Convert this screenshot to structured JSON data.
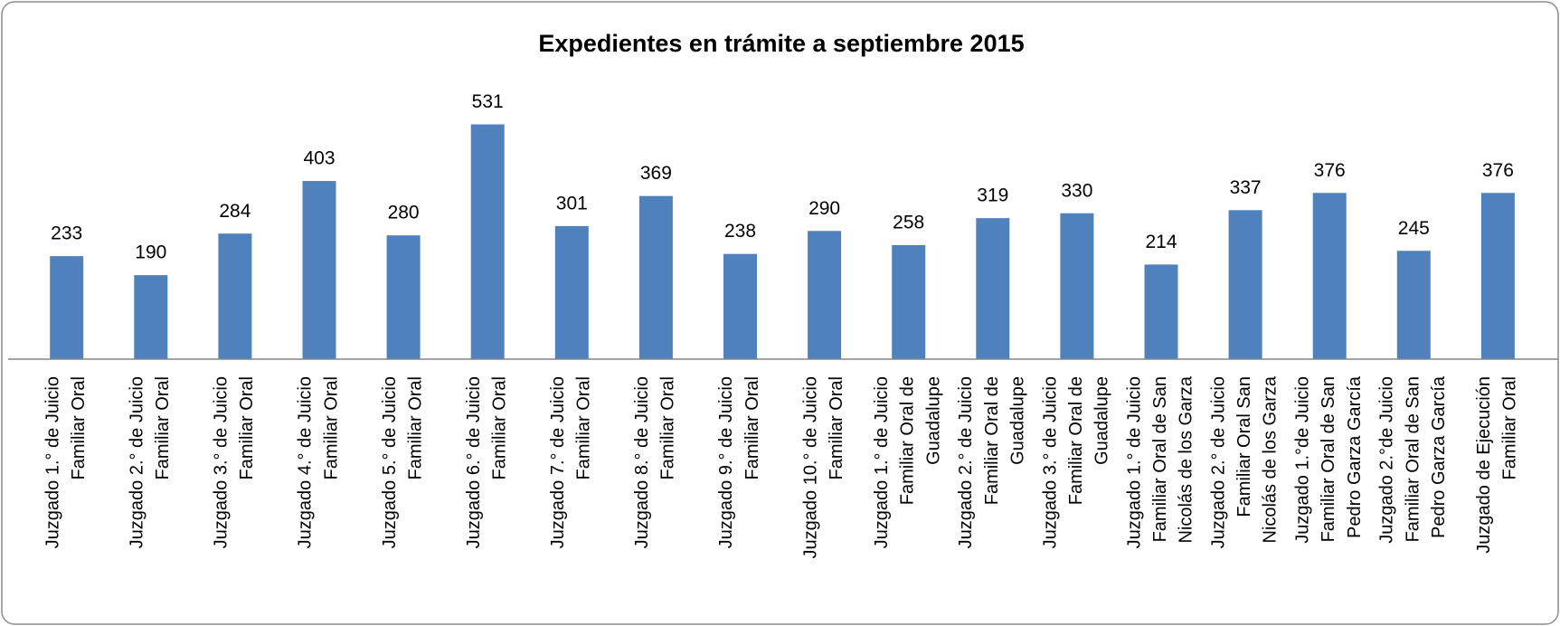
{
  "chart_data": {
    "type": "bar",
    "title": "Expedientes en trámite a septiembre 2015",
    "categories": [
      "Juzgado 1.° de Juicio\nFamiliar Oral",
      "Juzgado 2.° de Juicio\nFamiliar Oral",
      "Juzgado 3.° de Juicio\nFamiliar Oral",
      "Juzgado 4.° de Juicio\nFamiliar Oral",
      "Juzgado 5.° de Juicio\nFamiliar Oral",
      "Juzgado 6.° de Juicio\nFamiliar Oral",
      "Juzgado 7.° de Juicio\nFamiliar Oral",
      "Juzgado 8.° de Juicio\nFamiliar Oral",
      "Juzgado 9.° de Juicio\nFamiliar Oral",
      "Juzgado 10.° de Juicio\nFamiliar Oral",
      "Juzgado 1.° de Juicio\nFamiliar Oral de\nGuadalupe",
      "Juzgado 2.° de Juicio\nFamiliar Oral de\nGuadalupe",
      "Juzgado 3.° de Juicio\nFamiliar Oral de\nGuadalupe",
      "Juzgado 1.° de Juicio\nFamiliar Oral de San\nNicolás de los Garza",
      "Juzgado 2.° de Juicio\nFamiliar Oral San\nNicolás de los Garza",
      "Juzgado 1.°de Juicio\nFamiliar Oral de San\nPedro Garza García",
      "Juzgado 2.°de Juicio\nFamiliar Oral de San\nPedro Garza García",
      "Juzgado de Ejecución\nFamiliar Oral"
    ],
    "values": [
      233,
      190,
      284,
      403,
      280,
      531,
      301,
      369,
      238,
      290,
      258,
      319,
      330,
      214,
      337,
      376,
      245,
      376
    ],
    "color": "#4f81bd"
  }
}
